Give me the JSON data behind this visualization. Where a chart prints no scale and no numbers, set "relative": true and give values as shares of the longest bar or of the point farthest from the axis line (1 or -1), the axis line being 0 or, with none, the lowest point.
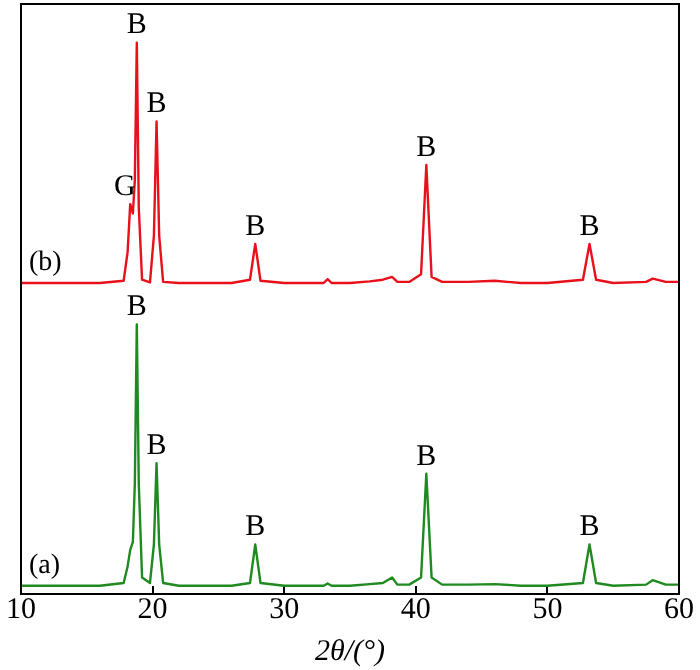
{
  "chart_data": {
    "type": "line",
    "relative": true,
    "xlabel": "2θ/(°)",
    "xlim": [
      10,
      60
    ],
    "xticks": [
      10,
      20,
      30,
      40,
      50,
      60
    ],
    "tick_labels": "x",
    "grid": false,
    "legend": false,
    "marker": "none",
    "line_style": "solid",
    "series": [
      {
        "name": "(a)",
        "color": "#1f8a1f",
        "x": [
          10,
          12,
          14,
          16,
          17.8,
          18.1,
          18.3,
          18.5,
          18.65,
          18.8,
          18.95,
          19.2,
          19.8,
          20.1,
          20.3,
          20.5,
          20.8,
          22,
          24,
          26,
          27.4,
          27.8,
          28.2,
          30,
          32,
          33,
          33.3,
          33.6,
          35,
          36.5,
          37.5,
          38.2,
          38.6,
          39.5,
          40.4,
          40.8,
          41.2,
          42,
          44,
          46,
          48,
          50,
          52.7,
          53.2,
          53.7,
          55,
          57.5,
          58,
          59,
          60
        ],
        "values": [
          0.015,
          0.015,
          0.015,
          0.015,
          0.02,
          0.05,
          0.08,
          0.094,
          0.2,
          0.489,
          0.2,
          0.03,
          0.02,
          0.09,
          0.237,
          0.09,
          0.02,
          0.015,
          0.015,
          0.015,
          0.02,
          0.09,
          0.02,
          0.015,
          0.015,
          0.015,
          0.019,
          0.015,
          0.015,
          0.018,
          0.02,
          0.03,
          0.017,
          0.017,
          0.03,
          0.218,
          0.03,
          0.017,
          0.017,
          0.018,
          0.015,
          0.015,
          0.02,
          0.09,
          0.02,
          0.015,
          0.017,
          0.025,
          0.017,
          0.017
        ]
      },
      {
        "name": "(b)",
        "color": "#e8101a",
        "x": [
          10,
          12,
          14,
          16,
          17.8,
          18.1,
          18.3,
          18.5,
          18.65,
          18.8,
          18.95,
          19.2,
          19.8,
          20.1,
          20.3,
          20.5,
          20.8,
          22,
          24,
          26,
          27.4,
          27.8,
          28.2,
          30,
          32,
          33,
          33.3,
          33.6,
          35,
          36.5,
          37.5,
          38.2,
          38.6,
          39.5,
          40.4,
          40.8,
          41.2,
          42,
          44,
          46,
          48,
          50,
          52.7,
          53.2,
          53.7,
          55,
          57.5,
          58,
          59,
          60
        ],
        "values": [
          0.564,
          0.564,
          0.564,
          0.564,
          0.568,
          0.62,
          0.707,
          0.69,
          0.75,
          1,
          0.7,
          0.57,
          0.565,
          0.65,
          0.857,
          0.65,
          0.566,
          0.564,
          0.564,
          0.564,
          0.57,
          0.635,
          0.568,
          0.564,
          0.564,
          0.564,
          0.571,
          0.564,
          0.564,
          0.567,
          0.57,
          0.575,
          0.566,
          0.566,
          0.58,
          0.778,
          0.575,
          0.566,
          0.566,
          0.568,
          0.564,
          0.564,
          0.57,
          0.635,
          0.57,
          0.564,
          0.566,
          0.572,
          0.566,
          0.566
        ]
      }
    ],
    "annotations": [
      {
        "text": "B",
        "x": 18.8,
        "y": 1
      },
      {
        "text": "G",
        "x": 17.9,
        "y": 0.707
      },
      {
        "text": "B",
        "x": 20.3,
        "y": 0.857
      },
      {
        "text": "B",
        "x": 27.8,
        "y": 0.635
      },
      {
        "text": "B",
        "x": 40.8,
        "y": 0.778
      },
      {
        "text": "B",
        "x": 53.2,
        "y": 0.635
      },
      {
        "text": "B",
        "x": 18.8,
        "y": 0.489
      },
      {
        "text": "B",
        "x": 20.3,
        "y": 0.237
      },
      {
        "text": "B",
        "x": 27.8,
        "y": 0.09
      },
      {
        "text": "B",
        "x": 40.8,
        "y": 0.218
      },
      {
        "text": "B",
        "x": 53.2,
        "y": 0.09
      }
    ]
  }
}
